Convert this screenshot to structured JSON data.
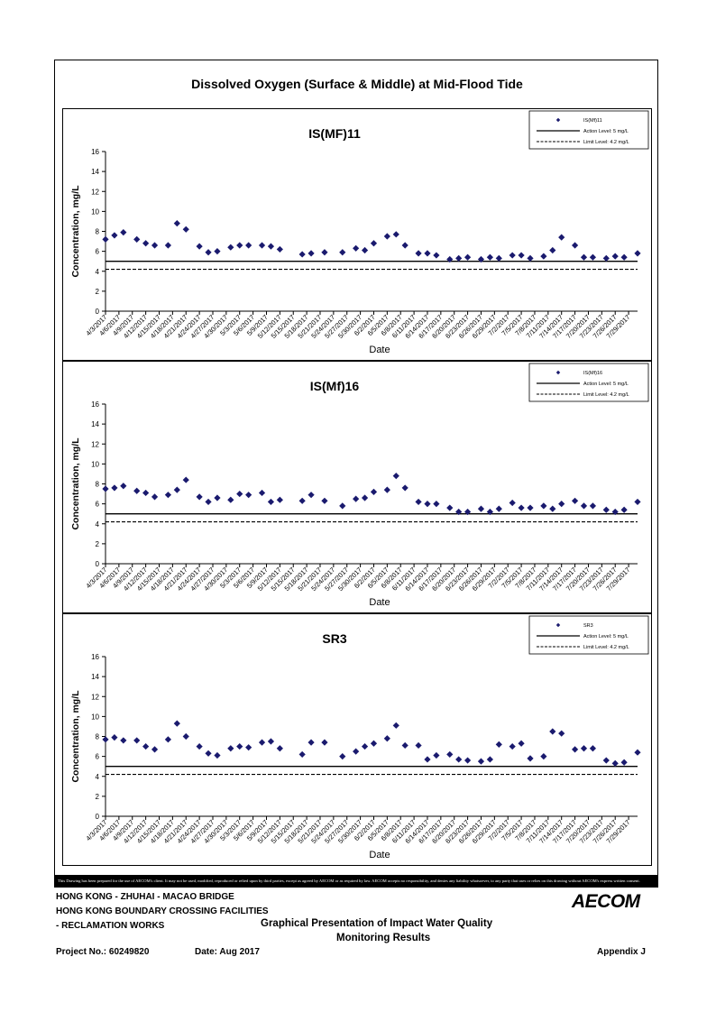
{
  "page": {
    "main_title": "Dissolved Oxygen (Surface & Middle) at Mid-Flood Tide",
    "disclaimer": "This Drawing has been prepared for the use of AECOM's client. It may not be used, modified, reproduced or relied upon by third parties, except as agreed by AECOM or as required by law. AECOM accepts no responsibility, and denies any liability whatsoever, to any party that uses or relies on this drawing without AECOM's express written consent.",
    "project_line1": "HONG KONG - ZHUHAI - MACAO BRIDGE",
    "project_line2": "HONG KONG BOUNDARY CROSSING FACILITIES",
    "project_line3": "- RECLAMATION WORKS",
    "doc_title_line1": "Graphical Presentation of Impact Water Quality",
    "doc_title_line2": "Monitoring Results",
    "project_no": "Project No.: 60249820",
    "date": "Date: Aug 2017",
    "appendix": "Appendix J",
    "logo_text": "AECOM"
  },
  "chart_data": [
    {
      "type": "scatter",
      "title": "IS(MF)11",
      "xlabel": "Date",
      "ylabel": "Concentration, mg/L",
      "ylim": [
        0,
        16
      ],
      "yticks": [
        0,
        2,
        4,
        6,
        8,
        10,
        12,
        14,
        16
      ],
      "x_range": [
        "4/3/2017",
        "7/31/2017"
      ],
      "x_tick_labels": [
        "4/3/2017",
        "4/6/2017",
        "4/9/2017",
        "4/12/2017",
        "4/15/2017",
        "4/18/2017",
        "4/21/2017",
        "4/24/2017",
        "4/27/2017",
        "4/30/2017",
        "5/3/2017",
        "5/6/2017",
        "5/9/2017",
        "5/12/2017",
        "5/15/2017",
        "5/18/2017",
        "5/21/2017",
        "5/24/2017",
        "5/27/2017",
        "5/30/2017",
        "6/2/2017",
        "6/5/2017",
        "6/8/2017",
        "6/11/2017",
        "6/14/2017",
        "6/17/2017",
        "6/20/2017",
        "6/23/2017",
        "6/26/2017",
        "6/29/2017",
        "7/2/2017",
        "7/5/2017",
        "7/8/2017",
        "7/11/2017",
        "7/14/2017",
        "7/17/2017",
        "7/20/2017",
        "7/23/2017",
        "7/26/2017",
        "7/29/2017"
      ],
      "grid": false,
      "legend_position": "top-right",
      "series": [
        {
          "name": "IS(Mf)11",
          "marker": "diamond",
          "color": "#1a1a6e",
          "x": [
            "4/3/2017",
            "4/5/2017",
            "4/7/2017",
            "4/10/2017",
            "4/12/2017",
            "4/14/2017",
            "4/17/2017",
            "4/19/2017",
            "4/21/2017",
            "4/24/2017",
            "4/26/2017",
            "4/28/2017",
            "5/1/2017",
            "5/3/2017",
            "5/5/2017",
            "5/8/2017",
            "5/10/2017",
            "5/12/2017",
            "5/17/2017",
            "5/19/2017",
            "5/22/2017",
            "5/26/2017",
            "5/29/2017",
            "5/31/2017",
            "6/2/2017",
            "6/5/2017",
            "6/7/2017",
            "6/9/2017",
            "6/12/2017",
            "6/14/2017",
            "6/16/2017",
            "6/19/2017",
            "6/21/2017",
            "6/23/2017",
            "6/26/2017",
            "6/28/2017",
            "6/30/2017",
            "7/3/2017",
            "7/5/2017",
            "7/7/2017",
            "7/10/2017",
            "7/12/2017",
            "7/14/2017",
            "7/17/2017",
            "7/19/2017",
            "7/21/2017",
            "7/24/2017",
            "7/26/2017",
            "7/28/2017",
            "7/31/2017"
          ],
          "values": [
            7.2,
            7.6,
            7.9,
            7.2,
            6.8,
            6.6,
            6.6,
            8.8,
            8.2,
            6.5,
            5.9,
            6.0,
            6.4,
            6.6,
            6.6,
            6.6,
            6.5,
            6.2,
            5.7,
            5.8,
            5.9,
            5.9,
            6.3,
            6.1,
            6.8,
            7.5,
            7.7,
            6.6,
            5.8,
            5.8,
            5.6,
            5.2,
            5.3,
            5.4,
            5.2,
            5.4,
            5.3,
            5.6,
            5.6,
            5.3,
            5.5,
            6.1,
            7.4,
            6.6,
            5.4,
            5.4,
            5.3,
            5.5,
            5.4,
            5.8
          ]
        },
        {
          "name": "Action Level: 5 mg/L",
          "style": "solid",
          "value": 5
        },
        {
          "name": "Limit Level: 4.2 mg/L",
          "style": "dashed",
          "value": 4.2
        }
      ]
    },
    {
      "type": "scatter",
      "title": "IS(Mf)16",
      "xlabel": "Date",
      "ylabel": "Concentration, mg/L",
      "ylim": [
        0,
        16
      ],
      "yticks": [
        0,
        2,
        4,
        6,
        8,
        10,
        12,
        14,
        16
      ],
      "x_range": [
        "4/3/2017",
        "7/31/2017"
      ],
      "x_tick_labels": [
        "4/3/2017",
        "4/6/2017",
        "4/9/2017",
        "4/12/2017",
        "4/15/2017",
        "4/18/2017",
        "4/21/2017",
        "4/24/2017",
        "4/27/2017",
        "4/30/2017",
        "5/3/2017",
        "5/6/2017",
        "5/9/2017",
        "5/12/2017",
        "5/15/2017",
        "5/18/2017",
        "5/21/2017",
        "5/24/2017",
        "5/27/2017",
        "5/30/2017",
        "6/2/2017",
        "6/5/2017",
        "6/8/2017",
        "6/11/2017",
        "6/14/2017",
        "6/17/2017",
        "6/20/2017",
        "6/23/2017",
        "6/26/2017",
        "6/29/2017",
        "7/2/2017",
        "7/5/2017",
        "7/8/2017",
        "7/11/2017",
        "7/14/2017",
        "7/17/2017",
        "7/20/2017",
        "7/23/2017",
        "7/26/2017",
        "7/29/2017"
      ],
      "grid": false,
      "legend_position": "top-right",
      "series": [
        {
          "name": "IS(Mf)16",
          "marker": "diamond",
          "color": "#1a1a6e",
          "x": [
            "4/3/2017",
            "4/5/2017",
            "4/7/2017",
            "4/10/2017",
            "4/12/2017",
            "4/14/2017",
            "4/17/2017",
            "4/19/2017",
            "4/21/2017",
            "4/24/2017",
            "4/26/2017",
            "4/28/2017",
            "5/1/2017",
            "5/3/2017",
            "5/5/2017",
            "5/8/2017",
            "5/10/2017",
            "5/12/2017",
            "5/17/2017",
            "5/19/2017",
            "5/22/2017",
            "5/26/2017",
            "5/29/2017",
            "5/31/2017",
            "6/2/2017",
            "6/5/2017",
            "6/7/2017",
            "6/9/2017",
            "6/12/2017",
            "6/14/2017",
            "6/16/2017",
            "6/19/2017",
            "6/21/2017",
            "6/23/2017",
            "6/26/2017",
            "6/28/2017",
            "6/30/2017",
            "7/3/2017",
            "7/5/2017",
            "7/7/2017",
            "7/10/2017",
            "7/12/2017",
            "7/14/2017",
            "7/17/2017",
            "7/19/2017",
            "7/21/2017",
            "7/24/2017",
            "7/26/2017",
            "7/28/2017",
            "7/31/2017"
          ],
          "values": [
            7.5,
            7.6,
            7.8,
            7.3,
            7.1,
            6.7,
            6.9,
            7.4,
            8.4,
            6.7,
            6.2,
            6.6,
            6.4,
            7.0,
            6.9,
            7.1,
            6.2,
            6.4,
            6.3,
            6.9,
            6.3,
            5.8,
            6.5,
            6.6,
            7.2,
            7.4,
            8.8,
            7.6,
            6.2,
            6.0,
            6.0,
            5.6,
            5.2,
            5.2,
            5.5,
            5.2,
            5.5,
            6.1,
            5.6,
            5.6,
            5.8,
            5.5,
            6.0,
            6.3,
            5.8,
            5.8,
            5.4,
            5.2,
            5.4,
            6.2
          ]
        },
        {
          "name": "Action Level: 5 mg/L",
          "style": "solid",
          "value": 5
        },
        {
          "name": "Limit Level: 4.2 mg/L",
          "style": "dashed",
          "value": 4.2
        }
      ]
    },
    {
      "type": "scatter",
      "title": "SR3",
      "xlabel": "Date",
      "ylabel": "Concentration, mg/L",
      "ylim": [
        0,
        16
      ],
      "yticks": [
        0,
        2,
        4,
        6,
        8,
        10,
        12,
        14,
        16
      ],
      "x_range": [
        "4/3/2017",
        "7/31/2017"
      ],
      "x_tick_labels": [
        "4/3/2017",
        "4/6/2017",
        "4/9/2017",
        "4/12/2017",
        "4/15/2017",
        "4/18/2017",
        "4/21/2017",
        "4/24/2017",
        "4/27/2017",
        "4/30/2017",
        "5/3/2017",
        "5/6/2017",
        "5/9/2017",
        "5/12/2017",
        "5/15/2017",
        "5/18/2017",
        "5/21/2017",
        "5/24/2017",
        "5/27/2017",
        "5/30/2017",
        "6/2/2017",
        "6/5/2017",
        "6/8/2017",
        "6/11/2017",
        "6/14/2017",
        "6/17/2017",
        "6/20/2017",
        "6/23/2017",
        "6/26/2017",
        "6/29/2017",
        "7/2/2017",
        "7/5/2017",
        "7/8/2017",
        "7/11/2017",
        "7/14/2017",
        "7/17/2017",
        "7/20/2017",
        "7/23/2017",
        "7/26/2017",
        "7/29/2017"
      ],
      "grid": false,
      "legend_position": "top-right",
      "series": [
        {
          "name": "SR3",
          "marker": "diamond",
          "color": "#1a1a6e",
          "x": [
            "4/3/2017",
            "4/5/2017",
            "4/7/2017",
            "4/10/2017",
            "4/12/2017",
            "4/14/2017",
            "4/17/2017",
            "4/19/2017",
            "4/21/2017",
            "4/24/2017",
            "4/26/2017",
            "4/28/2017",
            "5/1/2017",
            "5/3/2017",
            "5/5/2017",
            "5/8/2017",
            "5/10/2017",
            "5/12/2017",
            "5/17/2017",
            "5/19/2017",
            "5/22/2017",
            "5/26/2017",
            "5/29/2017",
            "5/31/2017",
            "6/2/2017",
            "6/5/2017",
            "6/7/2017",
            "6/9/2017",
            "6/12/2017",
            "6/14/2017",
            "6/16/2017",
            "6/19/2017",
            "6/21/2017",
            "6/23/2017",
            "6/26/2017",
            "6/28/2017",
            "6/30/2017",
            "7/3/2017",
            "7/5/2017",
            "7/7/2017",
            "7/10/2017",
            "7/12/2017",
            "7/14/2017",
            "7/17/2017",
            "7/19/2017",
            "7/21/2017",
            "7/24/2017",
            "7/26/2017",
            "7/28/2017",
            "7/31/2017"
          ],
          "values": [
            7.7,
            7.9,
            7.6,
            7.6,
            7.0,
            6.7,
            7.7,
            9.3,
            8.0,
            7.0,
            6.3,
            6.1,
            6.8,
            7.0,
            6.9,
            7.4,
            7.5,
            6.8,
            6.2,
            7.4,
            7.4,
            6.0,
            6.5,
            7.0,
            7.3,
            7.8,
            9.1,
            7.1,
            7.1,
            5.7,
            6.1,
            6.2,
            5.7,
            5.6,
            5.5,
            5.7,
            7.2,
            7.0,
            7.3,
            5.8,
            6.0,
            8.5,
            8.3,
            6.7,
            6.8,
            6.8,
            5.6,
            5.3,
            5.4,
            6.4
          ]
        },
        {
          "name": "Action Level: 5 mg/L",
          "style": "solid",
          "value": 5
        },
        {
          "name": "Limit Level: 4.2 mg/L",
          "style": "dashed",
          "value": 4.2
        }
      ]
    }
  ]
}
